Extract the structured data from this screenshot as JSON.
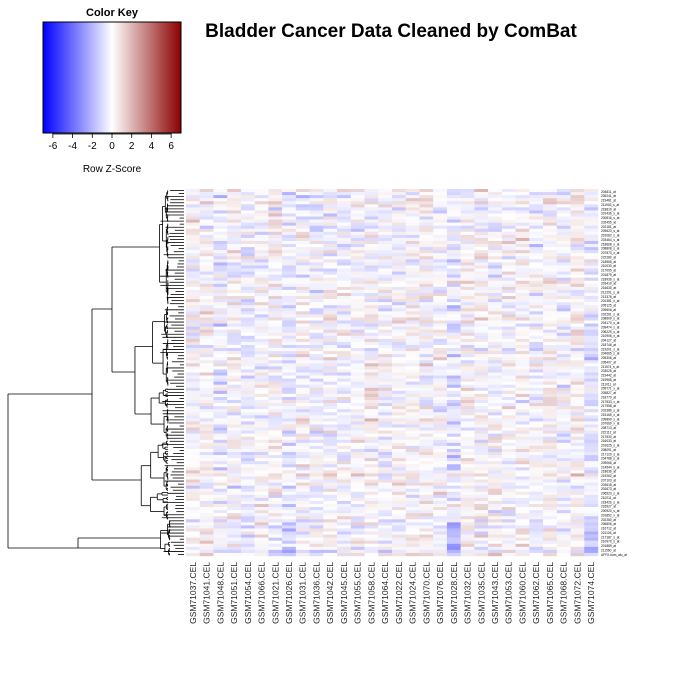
{
  "chart_data": {
    "type": "heatmap",
    "title": "Bladder Cancer Data Cleaned by ComBat",
    "color_key": {
      "title": "Color Key",
      "xlabel": "Row Z-Score",
      "ticks": [
        -6,
        -4,
        -2,
        0,
        2,
        4,
        6
      ],
      "range": [
        -7,
        7
      ],
      "colors": {
        "low": "#0000ff",
        "mid": "#ffffff",
        "high": "#8b0000"
      }
    },
    "columns": [
      "GSM71037.CEL",
      "GSM71041.CEL",
      "GSM71048.CEL",
      "GSM71051.CEL",
      "GSM71054.CEL",
      "GSM71066.CEL",
      "GSM71021.CEL",
      "GSM71026.CEL",
      "GSM71031.CEL",
      "GSM71036.CEL",
      "GSM71042.CEL",
      "GSM71045.CEL",
      "GSM71055.CEL",
      "GSM71058.CEL",
      "GSM71064.CEL",
      "GSM71022.CEL",
      "GSM71024.CEL",
      "GSM71070.CEL",
      "GSM71076.CEL",
      "GSM71028.CEL",
      "GSM71032.CEL",
      "GSM71035.CEL",
      "GSM71043.CEL",
      "GSM71053.CEL",
      "GSM71060.CEL",
      "GSM71062.CEL",
      "GSM71065.CEL",
      "GSM71068.CEL",
      "GSM71072.CEL",
      "GSM71074.CEL"
    ],
    "row_labels": [
      "204811_at",
      "205241_at",
      "219481_at",
      "211903_s_at",
      "218819_at",
      "201436_s_at",
      "200816_s_at",
      "202455_at",
      "202181_at",
      "209623_s_at",
      "201082_s_at",
      "203464_s_at",
      "218668_s_at",
      "208808_s_at",
      "207873_x_at",
      "222280_at",
      "218565_at",
      "210030_at",
      "217095_at",
      "201879_at",
      "218936_s_at",
      "203410_at",
      "216630_at",
      "212251_s_at",
      "213376_at",
      "201381_x_at",
      "205125_at",
      "209606_at",
      "202261_s_at",
      "208609_s_at",
      "204170_s_at",
      "209474_s_at",
      "206229_s_at",
      "210906_x_at",
      "204127_at",
      "218746_at",
      "219201_s_at",
      "204665_s_at",
      "205306_at",
      "205407_at",
      "211574_s_at",
      "203025_at",
      "219442_at",
      "219965_at",
      "211011_at",
      "209771_x_at",
      "205827_at",
      "218779_at",
      "217533_x_at",
      "217958_at",
      "202386_s_at",
      "215165_x_at",
      "209899_s_at",
      "207669_x_at",
      "208713_at",
      "222112_at",
      "217530_at",
      "216033_at",
      "201625_s_at",
      "208091_at",
      "217120_s_at",
      "204788_s_at",
      "209066_at",
      "214544_s_at",
      "218636_at",
      "219262_at",
      "207103_at",
      "203618_at",
      "202673_at",
      "206520_s_at",
      "210211_at",
      "218426_s_at",
      "216927_at",
      "200920_s_at",
      "201852_x_at",
      "202280_at",
      "206806_at",
      "216712_at",
      "221126_at",
      "217187_s_at",
      "210970_s_at",
      "201889_at",
      "211560_at",
      "AFFX-hum_alu_at"
    ]
  }
}
